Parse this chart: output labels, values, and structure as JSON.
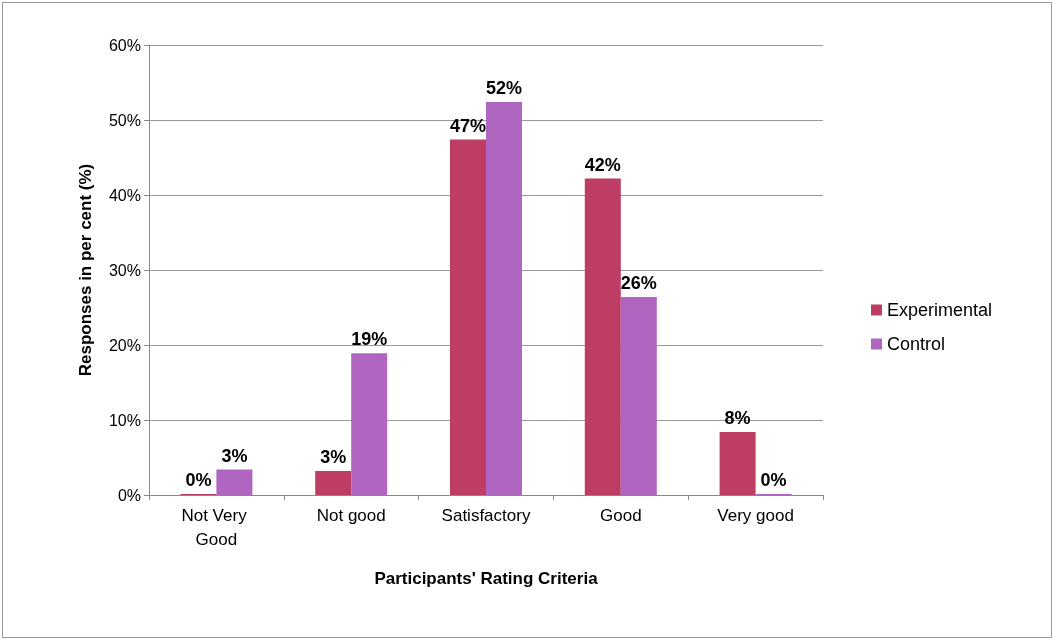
{
  "chart_data": {
    "type": "bar",
    "xlabel": "Participants' Rating Criteria",
    "ylabel": "Responses in per cent (%)",
    "categories": [
      "Not Very Good",
      "Not good",
      "Satisfactory",
      "Good",
      "Very good"
    ],
    "series": [
      {
        "name": "Experimental",
        "color": "#be3d64",
        "values": [
          0,
          3.2,
          47.4,
          42.2,
          8.4
        ],
        "value_labels": [
          "0%",
          "3%",
          "47%",
          "42%",
          "8%"
        ]
      },
      {
        "name": "Control",
        "color": "#b065c0",
        "values": [
          3.4,
          18.9,
          52.4,
          26.4,
          0
        ],
        "value_labels": [
          "3%",
          "19%",
          "52%",
          "26%",
          "0%"
        ]
      }
    ],
    "ylim": [
      0,
      60
    ],
    "yticks": [
      {
        "value": 0,
        "label": "0%"
      },
      {
        "value": 10,
        "label": "10%"
      },
      {
        "value": 20,
        "label": "20%"
      },
      {
        "value": 30,
        "label": "30%"
      },
      {
        "value": 40,
        "label": "40%"
      },
      {
        "value": 50,
        "label": "50%"
      },
      {
        "value": 60,
        "label": "60%"
      }
    ],
    "grid": "y",
    "legend": "right"
  }
}
